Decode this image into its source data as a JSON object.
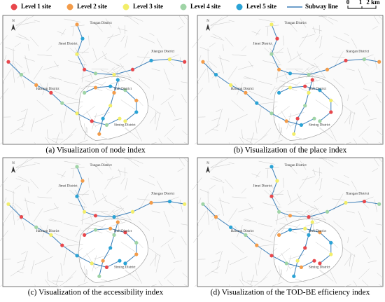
{
  "legend": {
    "items": [
      {
        "label": "Level 1 site",
        "color": "#e8474c"
      },
      {
        "label": "Level 2 site",
        "color": "#f39c4a"
      },
      {
        "label": "Level 3 site",
        "color": "#f2ee6a"
      },
      {
        "label": "Level 4 site",
        "color": "#9fd4a6"
      },
      {
        "label": "Level 5 site",
        "color": "#2aa3d6"
      }
    ],
    "line": {
      "label": "Subway line",
      "color": "#3d7fb8"
    },
    "scale": [
      "0",
      "1",
      "2 km"
    ]
  },
  "north": "N",
  "districts": [
    "Tongan District",
    "Jimei District",
    "Xiangan District",
    "Haicang District",
    "Huli District",
    "Siming District"
  ],
  "panels": [
    {
      "caption": "(a) Visualization of node index"
    },
    {
      "caption": "(b) Visualization of the place index"
    },
    {
      "caption": "(c) Visualization of the accessibility index"
    },
    {
      "caption": "(d) Visualization of the TOD-BE efficiency index"
    }
  ]
}
